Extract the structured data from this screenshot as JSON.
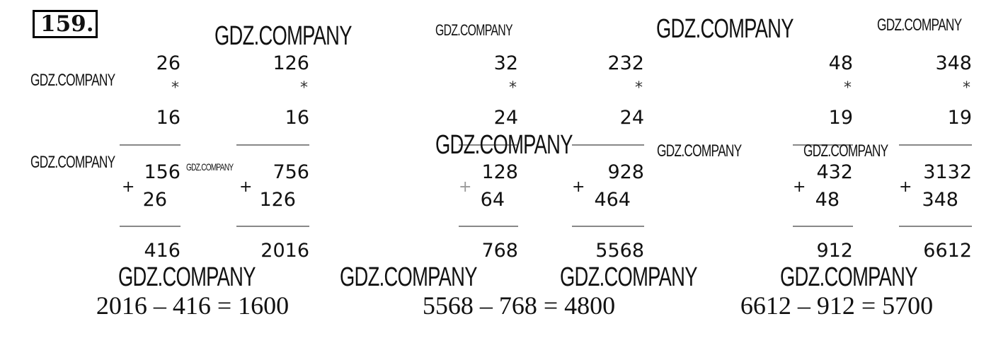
{
  "problem_number": "159.",
  "blocks": [
    {
      "factor1": "26",
      "op": "*",
      "factor2": "16",
      "partial1": "156",
      "plus": "+",
      "partial2": "26",
      "result": "416"
    },
    {
      "factor1": "126",
      "op": "*",
      "factor2": "16",
      "partial1": "756",
      "plus": "+",
      "partial2": "126",
      "result": "2016"
    },
    {
      "factor1": "32",
      "op": "*",
      "factor2": "24",
      "partial1": "128",
      "plus": "+",
      "partial2": "64",
      "result": "768"
    },
    {
      "factor1": "232",
      "op": "*",
      "factor2": "24",
      "partial1": "928",
      "plus": "+",
      "partial2": "464",
      "result": "5568"
    },
    {
      "factor1": "48",
      "op": "*",
      "factor2": "19",
      "partial1": "432",
      "plus": "+",
      "partial2": "48",
      "result": "912"
    },
    {
      "factor1": "348",
      "op": "*",
      "factor2": "19",
      "partial1": "3132",
      "plus": "+",
      "partial2": "348",
      "result": "6612"
    }
  ],
  "equations": [
    "2016 – 416 = 1600",
    "5568 – 768 = 4800",
    "6612 – 912 = 5700"
  ],
  "watermark": "GDZ.COMPANY"
}
